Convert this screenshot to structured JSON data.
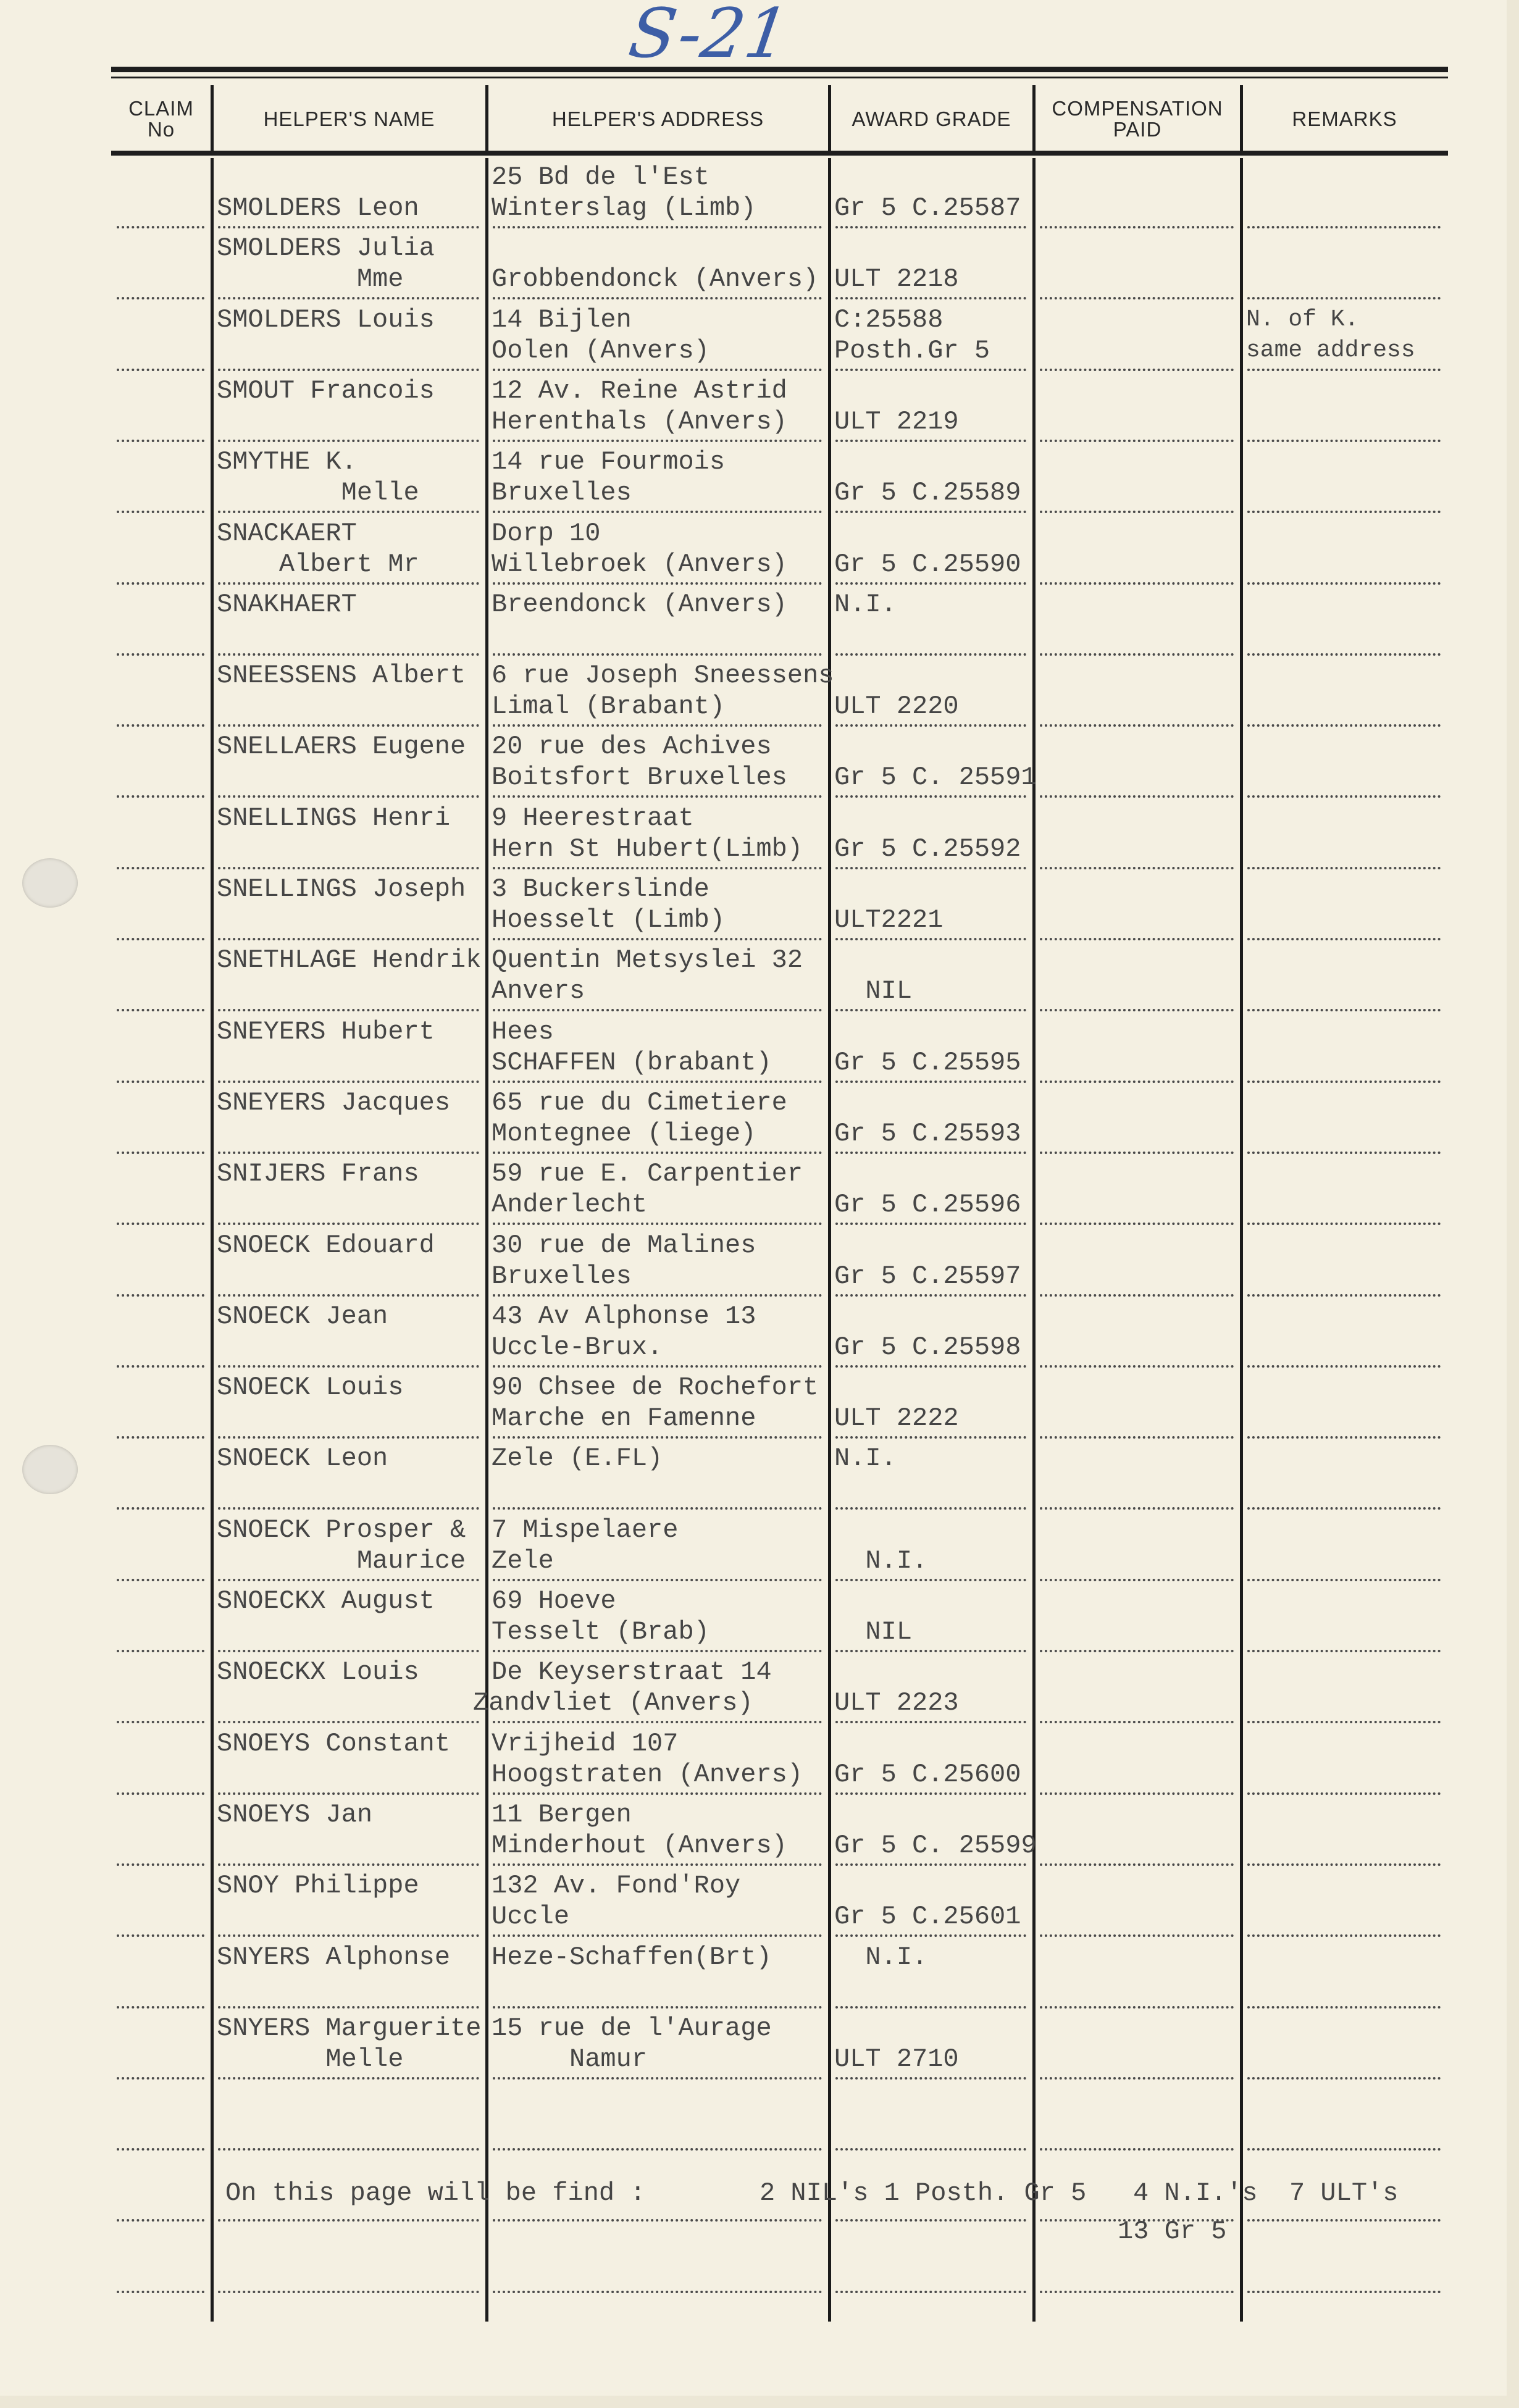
{
  "page_mark": "S-21",
  "columns": [
    "CLAIM\nNo",
    "HELPER'S NAME",
    "HELPER'S ADDRESS",
    "AWARD GRADE",
    "COMPENSATION\nPAID",
    "REMARKS"
  ],
  "rows": [
    {
      "name": [
        "",
        "SMOLDERS Leon"
      ],
      "address": [
        "25 Bd de l'Est",
        "Winterslag (Limb)"
      ],
      "award": [
        "",
        "Gr 5 C.25587"
      ],
      "remarks": [
        "",
        ""
      ]
    },
    {
      "name": [
        "SMOLDERS Julia",
        "         Mme"
      ],
      "address": [
        "",
        "Grobbendonck (Anvers)"
      ],
      "award": [
        "",
        "ULT 2218"
      ],
      "remarks": [
        "",
        ""
      ]
    },
    {
      "name": [
        "SMOLDERS Louis",
        ""
      ],
      "address": [
        "14 Bijlen",
        "Oolen (Anvers)"
      ],
      "award": [
        "C:25588",
        "Posth.Gr 5"
      ],
      "remarks": [
        "N. of K.",
        "same address"
      ]
    },
    {
      "name": [
        "SMOUT Francois",
        ""
      ],
      "address": [
        "12 Av. Reine Astrid",
        "Herenthals (Anvers)"
      ],
      "award": [
        "",
        "ULT 2219"
      ],
      "remarks": [
        "",
        ""
      ]
    },
    {
      "name": [
        "SMYTHE K.",
        "        Melle"
      ],
      "address": [
        "14 rue Fourmois",
        "Bruxelles"
      ],
      "award": [
        "",
        "Gr 5 C.25589"
      ],
      "remarks": [
        "",
        ""
      ]
    },
    {
      "name": [
        "SNACKAERT",
        "    Albert Mr"
      ],
      "address": [
        "Dorp 10",
        "Willebroek (Anvers)"
      ],
      "award": [
        "",
        "Gr 5 C.25590"
      ],
      "remarks": [
        "",
        ""
      ]
    },
    {
      "name": [
        "SNAKHAERT",
        ""
      ],
      "address": [
        "Breendonck (Anvers)",
        ""
      ],
      "award": [
        "N.I.",
        ""
      ],
      "remarks": [
        "",
        ""
      ]
    },
    {
      "name": [
        "SNEESSENS Albert",
        ""
      ],
      "address": [
        "6 rue Joseph Sneessens",
        "Limal (Brabant)"
      ],
      "award": [
        "",
        "ULT 2220"
      ],
      "remarks": [
        "",
        ""
      ]
    },
    {
      "name": [
        "SNELLAERS Eugene",
        ""
      ],
      "address": [
        "20 rue des Achives",
        "Boitsfort Bruxelles"
      ],
      "award": [
        "",
        "Gr 5 C. 25591"
      ],
      "remarks": [
        "",
        ""
      ]
    },
    {
      "name": [
        "SNELLINGS Henri",
        ""
      ],
      "address": [
        "9 Heerestraat",
        "Hern St Hubert(Limb)"
      ],
      "award": [
        "",
        "Gr 5 C.25592"
      ],
      "remarks": [
        "",
        ""
      ]
    },
    {
      "name": [
        "SNELLINGS Joseph",
        ""
      ],
      "address": [
        "3 Buckerslinde",
        "Hoesselt (Limb)"
      ],
      "award": [
        "",
        "ULT2221"
      ],
      "remarks": [
        "",
        ""
      ]
    },
    {
      "name": [
        "SNETHLAGE Hendrik",
        ""
      ],
      "address": [
        "Quentin Metsyslei 32",
        "Anvers"
      ],
      "award": [
        "",
        "  NIL"
      ],
      "remarks": [
        "",
        ""
      ]
    },
    {
      "name": [
        "SNEYERS Hubert",
        ""
      ],
      "address": [
        "Hees",
        "SCHAFFEN (brabant)"
      ],
      "award": [
        "",
        "Gr 5 C.25595"
      ],
      "remarks": [
        "",
        ""
      ]
    },
    {
      "name": [
        "SNEYERS Jacques",
        ""
      ],
      "address": [
        "65 rue du Cimetiere",
        "Montegnee (liege)"
      ],
      "award": [
        "",
        "Gr 5 C.25593"
      ],
      "remarks": [
        "",
        ""
      ]
    },
    {
      "name": [
        "SNIJERS Frans",
        ""
      ],
      "address": [
        "59 rue E. Carpentier",
        "Anderlecht"
      ],
      "award": [
        "",
        "Gr 5 C.25596"
      ],
      "remarks": [
        "",
        ""
      ]
    },
    {
      "name": [
        "SNOECK Edouard",
        ""
      ],
      "address": [
        "30 rue de Malines",
        "Bruxelles"
      ],
      "award": [
        "",
        "Gr 5 C.25597"
      ],
      "remarks": [
        "",
        ""
      ]
    },
    {
      "name": [
        "SNOECK Jean",
        ""
      ],
      "address": [
        "43 Av Alphonse 13",
        "Uccle-Brux."
      ],
      "award": [
        "",
        "Gr 5 C.25598"
      ],
      "remarks": [
        "",
        ""
      ]
    },
    {
      "name": [
        "SNOECK Louis",
        ""
      ],
      "address": [
        "90 Chsee de Rochefort",
        "Marche en Famenne"
      ],
      "award": [
        "",
        "ULT 2222"
      ],
      "remarks": [
        "",
        ""
      ]
    },
    {
      "name": [
        "SNOECK Leon",
        ""
      ],
      "address": [
        "Zele (E.FL)",
        ""
      ],
      "award": [
        "N.I.",
        ""
      ],
      "remarks": [
        "",
        ""
      ]
    },
    {
      "name": [
        "SNOECK Prosper &",
        "         Maurice"
      ],
      "address": [
        "7 Mispelaere",
        "Zele"
      ],
      "award": [
        "",
        "  N.I."
      ],
      "remarks": [
        "",
        ""
      ]
    },
    {
      "name": [
        "SNOECKX August",
        ""
      ],
      "address": [
        "69 Hoeve",
        "Tesselt (Brab)"
      ],
      "award": [
        "",
        "  NIL"
      ],
      "remarks": [
        "",
        ""
      ]
    },
    {
      "name": [
        "SNOECKX Louis",
        ""
      ],
      "address": [
        "De Keyserstraat 14",
        "Zandvliet (Anvers)"
      ],
      "award": [
        "",
        "ULT 2223"
      ],
      "remarks": [
        "",
        ""
      ]
    },
    {
      "name": [
        "SNOEYS Constant",
        ""
      ],
      "address": [
        "Vrijheid 107",
        "Hoogstraten (Anvers)"
      ],
      "award": [
        "",
        "Gr 5 C.25600"
      ],
      "remarks": [
        "",
        ""
      ]
    },
    {
      "name": [
        "SNOEYS Jan",
        ""
      ],
      "address": [
        "11 Bergen",
        "Minderhout (Anvers)"
      ],
      "award": [
        "",
        "Gr 5 C. 25599"
      ],
      "remarks": [
        "",
        ""
      ]
    },
    {
      "name": [
        "SNOY Philippe",
        ""
      ],
      "address": [
        "132 Av. Fond'Roy",
        "Uccle"
      ],
      "award": [
        "",
        "Gr 5 C.25601"
      ],
      "remarks": [
        "",
        ""
      ]
    },
    {
      "name": [
        "SNYERS Alphonse",
        ""
      ],
      "address": [
        "Heze-Schaffen(Brt)",
        ""
      ],
      "award": [
        "  N.I.",
        ""
      ],
      "remarks": [
        "",
        ""
      ]
    },
    {
      "name": [
        "SNYERS Marguerite",
        "       Melle"
      ],
      "address": [
        "15 rue de l'Aurage",
        "     Namur"
      ],
      "award": [
        "",
        "ULT 2710"
      ],
      "remarks": [
        "",
        ""
      ]
    }
  ],
  "summary": {
    "lead": "On this page will be find :",
    "nil_posth": "2 NIL's 1 Posth. Gr 5",
    "ni": "4 N.I.'s",
    "ult": "7 ULT's",
    "gr5": "13 Gr 5"
  }
}
